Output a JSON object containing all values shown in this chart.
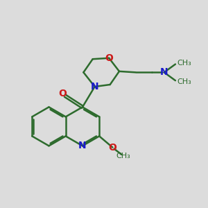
{
  "background_color": "#dcdcdc",
  "bond_color": "#2d6b2d",
  "N_color": "#1a1acc",
  "O_color": "#cc1a1a",
  "bond_width": 1.8,
  "dbo": 0.07,
  "figsize": [
    3.0,
    3.0
  ],
  "dpi": 100,
  "xlim": [
    0,
    10
  ],
  "ylim": [
    0,
    10
  ]
}
